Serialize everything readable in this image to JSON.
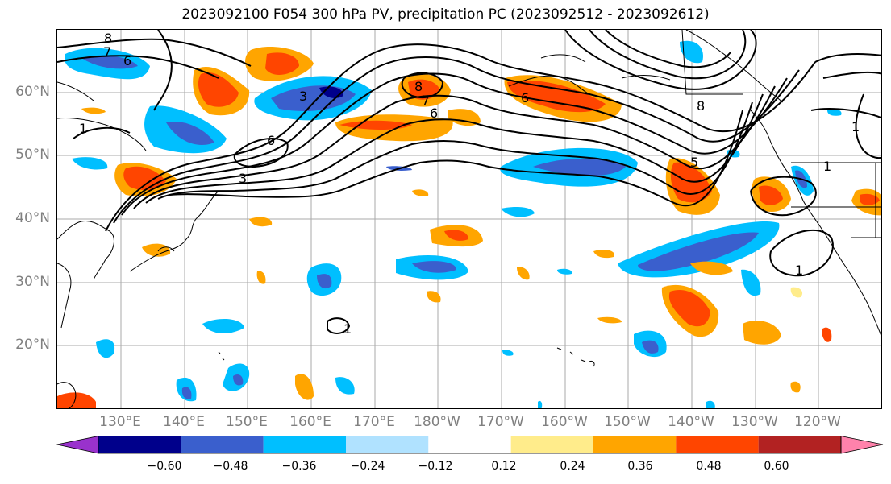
{
  "title": "2023092100 F054 300 hPa PV, precipitation PC (2023092512 - 2023092612)",
  "lat_labels": [
    "60°N",
    "50°N",
    "40°N",
    "30°N",
    "20°N"
  ],
  "lon_labels": [
    "130°E",
    "140°E",
    "150°E",
    "160°E",
    "170°E",
    "180°W",
    "170°W",
    "160°W",
    "150°W",
    "140°W",
    "130°W",
    "120°W"
  ],
  "colorbar": {
    "colors": [
      "#9932CC",
      "#00008B",
      "#3A5FCD",
      "#00BFFF",
      "#B0E2FF",
      "#FFFFFF",
      "#FFEC8B",
      "#FFA500",
      "#FF4500",
      "#B22222",
      "#FF82AB"
    ],
    "tick_labels": [
      "−0.60",
      "−0.48",
      "−0.36",
      "−0.24",
      "−0.12",
      "0.12",
      "0.24",
      "0.36",
      "0.48",
      "0.60"
    ]
  },
  "pv_contour_labels": [
    "8",
    "7",
    "6",
    "6",
    "3",
    "3",
    "8",
    "7",
    "6",
    "6",
    "8",
    "1",
    "1",
    "5",
    "1",
    "1",
    "1"
  ]
}
